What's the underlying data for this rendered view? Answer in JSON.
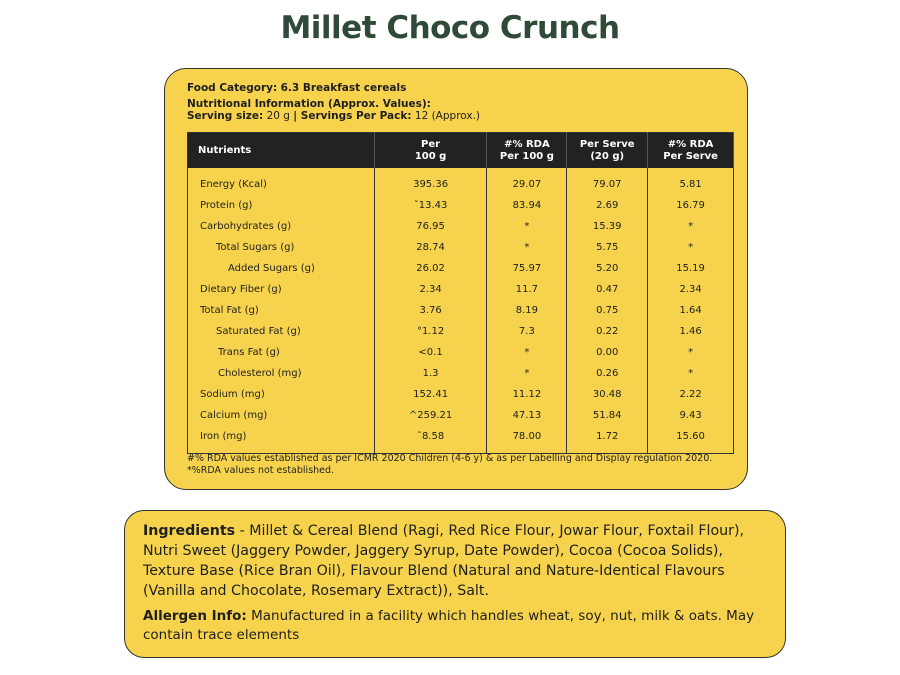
{
  "title": "Millet Choco Crunch",
  "panel": {
    "food_category_label": "Food Category:",
    "food_category_value": "6.3 Breakfast cereals",
    "nutrition_info": "Nutritional Information (Approx. Values):",
    "serving_size_label": "Serving size:",
    "serving_size_value": "20  g",
    "servings_per_pack_label": "| Servings Per Pack:",
    "servings_per_pack_value": "12 (Approx.)"
  },
  "table": {
    "headers": [
      "Nutrients",
      "Per\n100 g",
      "#% RDA\nPer 100 g",
      "Per Serve\n(20 g)",
      "#% RDA\nPer Serve"
    ],
    "rows": [
      {
        "name": "Energy (Kcal)",
        "indent": 0,
        "v": [
          "395.36",
          "29.07",
          "79.07",
          "5.81"
        ]
      },
      {
        "name": "Protein (g)",
        "indent": 0,
        "v": [
          "ˇ13.43",
          "83.94",
          "2.69",
          "16.79"
        ]
      },
      {
        "name": "Carbohydrates (g)",
        "indent": 0,
        "v": [
          "76.95",
          "*",
          "15.39",
          "*"
        ]
      },
      {
        "name": "Total Sugars (g)",
        "indent": 1,
        "v": [
          "28.74",
          "*",
          "5.75",
          "*"
        ]
      },
      {
        "name": "Added Sugars (g)",
        "indent": 2,
        "v": [
          "26.02",
          "75.97",
          "5.20",
          "15.19"
        ]
      },
      {
        "name": "Dietary Fiber (g)",
        "indent": 0,
        "v": [
          "2.34",
          "11.7",
          "0.47",
          "2.34"
        ]
      },
      {
        "name": "Total Fat (g)",
        "indent": 0,
        "v": [
          "3.76",
          "8.19",
          "0.75",
          "1.64"
        ]
      },
      {
        "name": "Saturated Fat (g)",
        "indent": 1,
        "v": [
          "°1.12",
          "7.3",
          "0.22",
          "1.46"
        ]
      },
      {
        "name": "Trans Fat (g)",
        "indent": 3,
        "v": [
          "<0.1",
          "*",
          "0.00",
          "*"
        ]
      },
      {
        "name": "Cholesterol (mg)",
        "indent": 3,
        "v": [
          "1.3",
          "*",
          "0.26",
          "*"
        ]
      },
      {
        "name": "Sodium (mg)",
        "indent": 0,
        "v": [
          "152.41",
          "11.12",
          "30.48",
          "2.22"
        ]
      },
      {
        "name": "Calcium (mg)",
        "indent": 0,
        "v": [
          "^259.21",
          "47.13",
          "51.84",
          "9.43"
        ]
      },
      {
        "name": "Iron (mg)",
        "indent": 0,
        "v": [
          "˜8.58",
          "78.00",
          "1.72",
          "15.60"
        ]
      }
    ]
  },
  "footnote": "#% RDA values established as per ICMR 2020 Children (4-6 y) & as per Labelling and Display regulation 2020. *%RDA values not established.",
  "ingredients": {
    "label": "Ingredients",
    "text": " - Millet & Cereal Blend (Ragi, Red Rice Flour, Jowar Flour, Foxtail Flour), Nutri Sweet (Jaggery Powder, Jaggery Syrup, Date Powder), Cocoa (Cocoa Solids), Texture Base (Rice Bran Oil), Flavour Blend (Natural and Nature-Identical Flavours (Vanilla and Chocolate, Rosemary Extract)), Salt.",
    "allergen_label": "Allergen Info:",
    "allergen_text": " Manufactured in a facility which handles wheat, soy, nut, milk & oats. May contain trace elements"
  },
  "colors": {
    "panel": "#f7d34d",
    "title": "#2f4a38",
    "header": "#222222"
  }
}
